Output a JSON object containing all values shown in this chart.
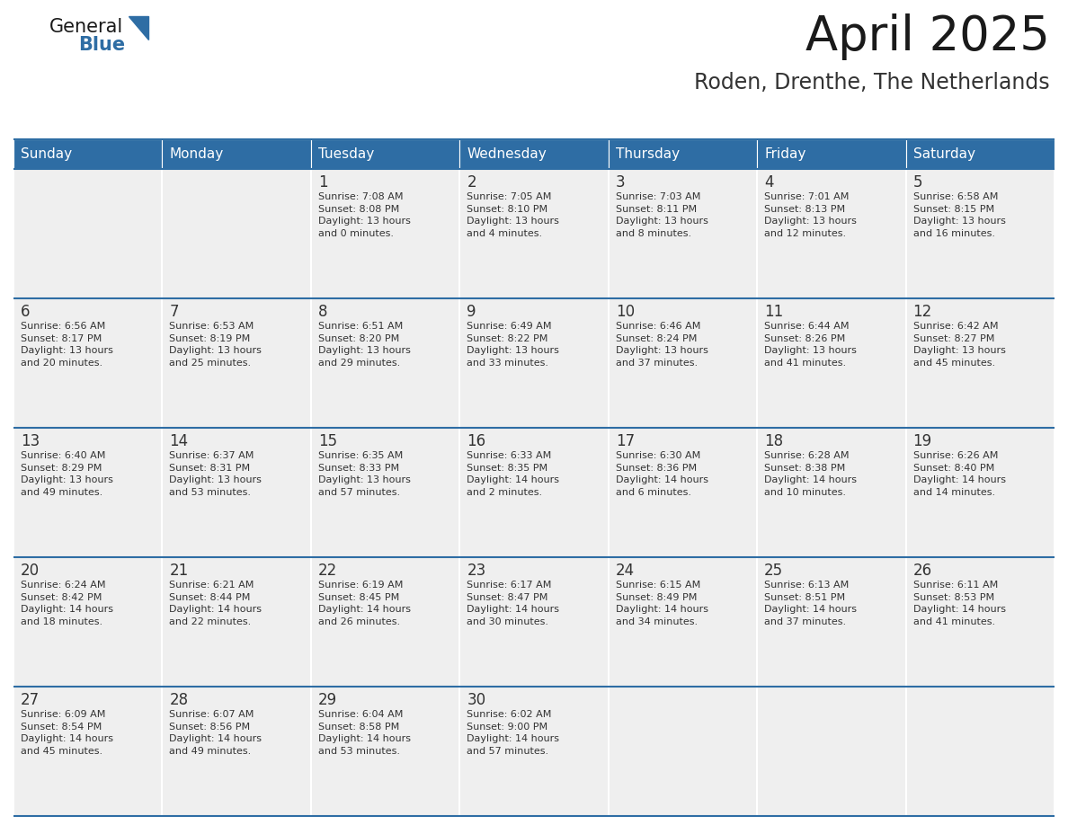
{
  "title": "April 2025",
  "subtitle": "Roden, Drenthe, The Netherlands",
  "days_of_week": [
    "Sunday",
    "Monday",
    "Tuesday",
    "Wednesday",
    "Thursday",
    "Friday",
    "Saturday"
  ],
  "header_bg": "#2E6DA4",
  "header_text": "#FFFFFF",
  "cell_bg": "#EFEFEF",
  "text_color": "#333333",
  "border_color": "#2E6DA4",
  "title_color": "#1a1a1a",
  "subtitle_color": "#333333",
  "logo_general_color": "#1a1a1a",
  "logo_blue_color": "#2E6DA4",
  "weeks": [
    [
      {
        "day": "",
        "info": ""
      },
      {
        "day": "",
        "info": ""
      },
      {
        "day": "1",
        "info": "Sunrise: 7:08 AM\nSunset: 8:08 PM\nDaylight: 13 hours\nand 0 minutes."
      },
      {
        "day": "2",
        "info": "Sunrise: 7:05 AM\nSunset: 8:10 PM\nDaylight: 13 hours\nand 4 minutes."
      },
      {
        "day": "3",
        "info": "Sunrise: 7:03 AM\nSunset: 8:11 PM\nDaylight: 13 hours\nand 8 minutes."
      },
      {
        "day": "4",
        "info": "Sunrise: 7:01 AM\nSunset: 8:13 PM\nDaylight: 13 hours\nand 12 minutes."
      },
      {
        "day": "5",
        "info": "Sunrise: 6:58 AM\nSunset: 8:15 PM\nDaylight: 13 hours\nand 16 minutes."
      }
    ],
    [
      {
        "day": "6",
        "info": "Sunrise: 6:56 AM\nSunset: 8:17 PM\nDaylight: 13 hours\nand 20 minutes."
      },
      {
        "day": "7",
        "info": "Sunrise: 6:53 AM\nSunset: 8:19 PM\nDaylight: 13 hours\nand 25 minutes."
      },
      {
        "day": "8",
        "info": "Sunrise: 6:51 AM\nSunset: 8:20 PM\nDaylight: 13 hours\nand 29 minutes."
      },
      {
        "day": "9",
        "info": "Sunrise: 6:49 AM\nSunset: 8:22 PM\nDaylight: 13 hours\nand 33 minutes."
      },
      {
        "day": "10",
        "info": "Sunrise: 6:46 AM\nSunset: 8:24 PM\nDaylight: 13 hours\nand 37 minutes."
      },
      {
        "day": "11",
        "info": "Sunrise: 6:44 AM\nSunset: 8:26 PM\nDaylight: 13 hours\nand 41 minutes."
      },
      {
        "day": "12",
        "info": "Sunrise: 6:42 AM\nSunset: 8:27 PM\nDaylight: 13 hours\nand 45 minutes."
      }
    ],
    [
      {
        "day": "13",
        "info": "Sunrise: 6:40 AM\nSunset: 8:29 PM\nDaylight: 13 hours\nand 49 minutes."
      },
      {
        "day": "14",
        "info": "Sunrise: 6:37 AM\nSunset: 8:31 PM\nDaylight: 13 hours\nand 53 minutes."
      },
      {
        "day": "15",
        "info": "Sunrise: 6:35 AM\nSunset: 8:33 PM\nDaylight: 13 hours\nand 57 minutes."
      },
      {
        "day": "16",
        "info": "Sunrise: 6:33 AM\nSunset: 8:35 PM\nDaylight: 14 hours\nand 2 minutes."
      },
      {
        "day": "17",
        "info": "Sunrise: 6:30 AM\nSunset: 8:36 PM\nDaylight: 14 hours\nand 6 minutes."
      },
      {
        "day": "18",
        "info": "Sunrise: 6:28 AM\nSunset: 8:38 PM\nDaylight: 14 hours\nand 10 minutes."
      },
      {
        "day": "19",
        "info": "Sunrise: 6:26 AM\nSunset: 8:40 PM\nDaylight: 14 hours\nand 14 minutes."
      }
    ],
    [
      {
        "day": "20",
        "info": "Sunrise: 6:24 AM\nSunset: 8:42 PM\nDaylight: 14 hours\nand 18 minutes."
      },
      {
        "day": "21",
        "info": "Sunrise: 6:21 AM\nSunset: 8:44 PM\nDaylight: 14 hours\nand 22 minutes."
      },
      {
        "day": "22",
        "info": "Sunrise: 6:19 AM\nSunset: 8:45 PM\nDaylight: 14 hours\nand 26 minutes."
      },
      {
        "day": "23",
        "info": "Sunrise: 6:17 AM\nSunset: 8:47 PM\nDaylight: 14 hours\nand 30 minutes."
      },
      {
        "day": "24",
        "info": "Sunrise: 6:15 AM\nSunset: 8:49 PM\nDaylight: 14 hours\nand 34 minutes."
      },
      {
        "day": "25",
        "info": "Sunrise: 6:13 AM\nSunset: 8:51 PM\nDaylight: 14 hours\nand 37 minutes."
      },
      {
        "day": "26",
        "info": "Sunrise: 6:11 AM\nSunset: 8:53 PM\nDaylight: 14 hours\nand 41 minutes."
      }
    ],
    [
      {
        "day": "27",
        "info": "Sunrise: 6:09 AM\nSunset: 8:54 PM\nDaylight: 14 hours\nand 45 minutes."
      },
      {
        "day": "28",
        "info": "Sunrise: 6:07 AM\nSunset: 8:56 PM\nDaylight: 14 hours\nand 49 minutes."
      },
      {
        "day": "29",
        "info": "Sunrise: 6:04 AM\nSunset: 8:58 PM\nDaylight: 14 hours\nand 53 minutes."
      },
      {
        "day": "30",
        "info": "Sunrise: 6:02 AM\nSunset: 9:00 PM\nDaylight: 14 hours\nand 57 minutes."
      },
      {
        "day": "",
        "info": ""
      },
      {
        "day": "",
        "info": ""
      },
      {
        "day": "",
        "info": ""
      }
    ]
  ]
}
